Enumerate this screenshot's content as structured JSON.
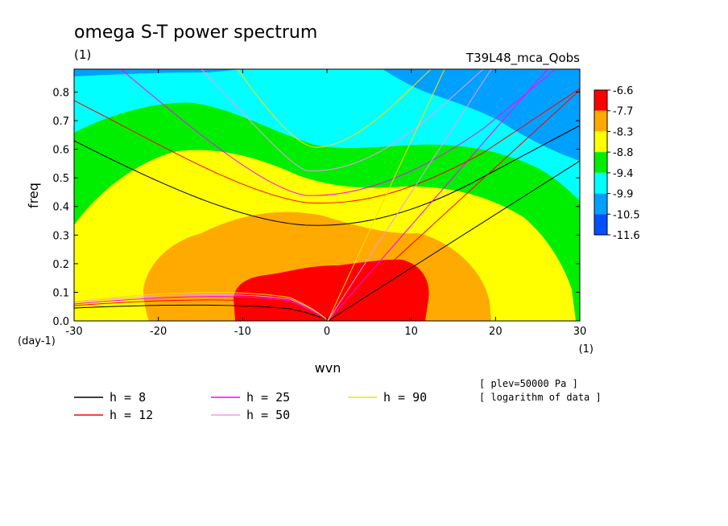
{
  "chart_data": {
    "type": "contour",
    "title": "omega S-T power spectrum",
    "subtitle_left": "(1)",
    "subtitle_right": "T39L48_mca_Qobs",
    "xlabel": "wvn",
    "ylabel": "freq",
    "x_unit": "(1)",
    "y_unit": "(day-1)",
    "xlim": [
      -30,
      30
    ],
    "ylim": [
      0,
      0.88
    ],
    "xticks": [
      -30,
      -20,
      -10,
      0,
      10,
      20,
      30
    ],
    "xtick_labels": [
      "-30",
      "-20",
      "-10",
      "0",
      "10",
      "20",
      "30"
    ],
    "yticks": [
      0.0,
      0.1,
      0.2,
      0.3,
      0.4,
      0.5,
      0.6,
      0.7,
      0.8
    ],
    "ytick_labels": [
      "0.0",
      "0.1",
      "0.2",
      "0.3",
      "0.4",
      "0.5",
      "0.6",
      "0.7",
      "0.8"
    ],
    "colorbar": {
      "levels": [
        "-6.6",
        "-7.7",
        "-8.3",
        "-8.8",
        "-9.4",
        "-9.9",
        "-10.5",
        "-11.6"
      ],
      "colors": [
        "#ff0000",
        "#ffaa00",
        "#ffff00",
        "#00ee00",
        "#00ffff",
        "#00a0ff",
        "#0050ff"
      ]
    },
    "dispersion_curves": [
      {
        "h": 8,
        "label": "h =  8",
        "color": "#000000"
      },
      {
        "h": 12,
        "label": "h = 12",
        "color": "#ff0000"
      },
      {
        "h": 25,
        "label": "h = 25",
        "color": "#ff00ff"
      },
      {
        "h": 50,
        "label": "h = 50",
        "color": "#ee99ee"
      },
      {
        "h": 90,
        "label": "h = 90",
        "color": "#ffdd00"
      }
    ],
    "annotations": [
      "[ plev=50000 Pa ]",
      "[ logarithm of data ]"
    ]
  }
}
